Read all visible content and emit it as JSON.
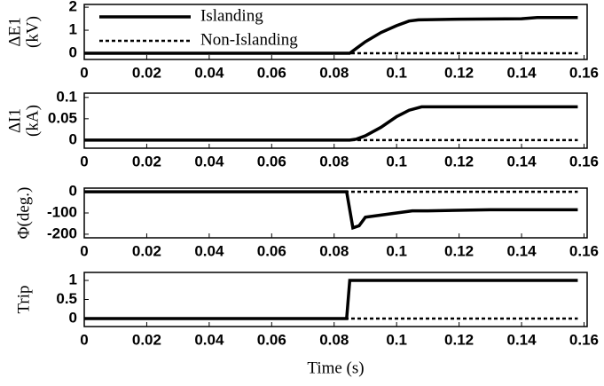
{
  "chart_data": [
    {
      "type": "line",
      "ylabel": [
        "ΔE1",
        "(kV)"
      ],
      "x": [
        0,
        0.085,
        0.087,
        0.09,
        0.095,
        0.1,
        0.104,
        0.107,
        0.12,
        0.14,
        0.145,
        0.158
      ],
      "series": [
        {
          "name": "Islanding",
          "color": "#000000",
          "line_style": "solid",
          "values": [
            0,
            0,
            0.2,
            0.5,
            0.9,
            1.2,
            1.4,
            1.45,
            1.48,
            1.5,
            1.55,
            1.55
          ]
        },
        {
          "name": "Non-Islanding",
          "color": "#000000",
          "line_style": "dashed",
          "values": [
            0,
            0,
            0,
            0,
            0,
            0,
            0,
            0,
            0,
            0,
            0,
            0
          ]
        }
      ],
      "xlim": [
        0,
        0.161
      ],
      "xticks": [
        0,
        0.02,
        0.04,
        0.06,
        0.08,
        0.1,
        0.12,
        0.14,
        0.16
      ],
      "ylim": [
        -0.27,
        2.12
      ],
      "yticks": [
        0,
        1,
        2
      ],
      "legend": "upper left"
    },
    {
      "type": "line",
      "ylabel": [
        "ΔI1",
        "(kA)"
      ],
      "x": [
        0,
        0.085,
        0.087,
        0.09,
        0.095,
        0.1,
        0.104,
        0.108,
        0.12,
        0.14,
        0.158
      ],
      "series": [
        {
          "color": "#000000",
          "line_style": "solid",
          "values": [
            0,
            0,
            0.002,
            0.01,
            0.03,
            0.055,
            0.07,
            0.078,
            0.078,
            0.078,
            0.078
          ]
        },
        {
          "color": "#000000",
          "line_style": "dashed",
          "values": [
            0,
            0,
            0,
            0,
            0,
            0,
            0,
            0,
            0,
            0,
            0
          ]
        }
      ],
      "xlim": [
        0,
        0.161
      ],
      "xticks": [
        0,
        0.02,
        0.04,
        0.06,
        0.08,
        0.1,
        0.12,
        0.14,
        0.16
      ],
      "ylim": [
        -0.019,
        0.11
      ],
      "yticks": [
        0,
        0.05,
        0.1
      ]
    },
    {
      "type": "line",
      "ylabel": [
        "Φ(deg.)"
      ],
      "x": [
        0,
        0.084,
        0.086,
        0.088,
        0.09,
        0.095,
        0.1,
        0.105,
        0.11,
        0.13,
        0.158
      ],
      "series": [
        {
          "color": "#000000",
          "line_style": "solid",
          "values": [
            0,
            0,
            -170,
            -160,
            -120,
            -110,
            -100,
            -90,
            -90,
            -85,
            -85
          ]
        },
        {
          "color": "#000000",
          "line_style": "dashed",
          "values": [
            0,
            0,
            0,
            0,
            0,
            0,
            0,
            0,
            0,
            0,
            0
          ]
        }
      ],
      "xlim": [
        0,
        0.161
      ],
      "xticks": [
        0,
        0.02,
        0.04,
        0.06,
        0.08,
        0.1,
        0.12,
        0.14,
        0.16
      ],
      "ylim": [
        -217,
        17
      ],
      "yticks": [
        0,
        -100,
        -200
      ]
    },
    {
      "type": "line",
      "ylabel": [
        "Trip"
      ],
      "xlabel": "Time (s)",
      "x": [
        0,
        0.084,
        0.085,
        0.158
      ],
      "series": [
        {
          "color": "#000000",
          "line_style": "solid",
          "values": [
            0,
            0,
            1,
            1
          ]
        },
        {
          "color": "#000000",
          "line_style": "dashed",
          "values": [
            0,
            0,
            0,
            0
          ]
        }
      ],
      "xlim": [
        0,
        0.161
      ],
      "xticks": [
        0,
        0.02,
        0.04,
        0.06,
        0.08,
        0.1,
        0.12,
        0.14,
        0.16
      ],
      "ylim": [
        -0.21,
        1.21
      ],
      "yticks": [
        0,
        0.5,
        1
      ]
    }
  ]
}
